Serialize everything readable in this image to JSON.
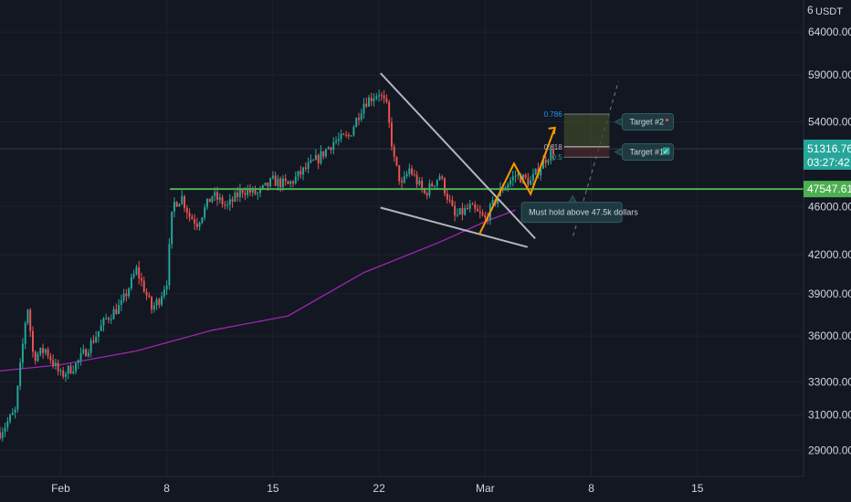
{
  "colors": {
    "background": "#131722",
    "grid": "#1e222d",
    "up": "#26a69a",
    "down": "#ef5350",
    "ma": "#9c27b0",
    "support": "#4caf50",
    "wedge": "#b2b5be",
    "projection": "#ff9800",
    "target_zone": "#3d4a2a",
    "target_zone_low": "#4a2a2a"
  },
  "header": {
    "currency": "USDT",
    "currency_prefix": "6"
  },
  "price_tags": {
    "last_price": "51316.76",
    "countdown": "03:27:42",
    "support_price": "47547.61"
  },
  "annotations": {
    "note": "Must hold above 47.5k dollars",
    "target1": "Target #1",
    "target2": "Target #2",
    "fib_786": "0.786",
    "fib_618": "0.618",
    "fib_5": "0.5",
    "check_glyph": "✓"
  },
  "chart_data": {
    "type": "candlestick",
    "x_tick_labels": [
      "Feb",
      "8",
      "15",
      "22",
      "Mar",
      "8",
      "15"
    ],
    "y_tick_labels": [
      "64000.00",
      "59000.00",
      "54000.00",
      "46000.00",
      "42000.00",
      "39000.00",
      "36000.00",
      "33000.00",
      "31000.00",
      "29000.00"
    ],
    "y_ticks": [
      64000,
      59000,
      54000,
      46000,
      42000,
      39000,
      36000,
      33000,
      31000,
      29000
    ],
    "x_ticks_day": [
      0,
      7,
      14,
      21,
      28,
      35,
      42
    ],
    "ylim": [
      27600,
      68000
    ],
    "xlim_days": [
      -4.0,
      49.0
    ],
    "log_scale": true,
    "grid": true,
    "support_level": 47547.61,
    "last_price": 51316.76,
    "close_path": [
      [
        -4.0,
        30000
      ],
      [
        -3.0,
        31200
      ],
      [
        -2.6,
        34500
      ],
      [
        -2.2,
        38300
      ],
      [
        -1.8,
        34600
      ],
      [
        -1.0,
        35100
      ],
      [
        0.0,
        33400
      ],
      [
        1.0,
        34100
      ],
      [
        2.0,
        35500
      ],
      [
        3.0,
        37200
      ],
      [
        4.0,
        38200
      ],
      [
        5.0,
        40800
      ],
      [
        5.5,
        39400
      ],
      [
        6.0,
        37900
      ],
      [
        6.5,
        38600
      ],
      [
        7.0,
        40000
      ],
      [
        7.4,
        46200
      ],
      [
        8.0,
        46800
      ],
      [
        8.5,
        45200
      ],
      [
        9.0,
        44600
      ],
      [
        10.0,
        47000
      ],
      [
        11.0,
        46000
      ],
      [
        12.0,
        47500
      ],
      [
        13.0,
        47100
      ],
      [
        14.0,
        48300
      ],
      [
        15.0,
        47900
      ],
      [
        16.0,
        49200
      ],
      [
        17.0,
        50400
      ],
      [
        18.0,
        52000
      ],
      [
        19.0,
        52500
      ],
      [
        20.0,
        56000
      ],
      [
        21.0,
        57100
      ],
      [
        21.5,
        55500
      ],
      [
        22.0,
        50200
      ],
      [
        22.5,
        47800
      ],
      [
        23.0,
        49400
      ],
      [
        24.0,
        47100
      ],
      [
        25.0,
        48800
      ],
      [
        26.0,
        45100
      ],
      [
        27.0,
        45900
      ],
      [
        28.0,
        44900
      ],
      [
        29.0,
        47400
      ],
      [
        30.0,
        48800
      ],
      [
        31.0,
        48200
      ],
      [
        32.0,
        50400
      ],
      [
        32.6,
        51316.76
      ]
    ],
    "ma_series": [
      [
        -4.0,
        33700
      ],
      [
        0.0,
        34100
      ],
      [
        5.0,
        35000
      ],
      [
        10.0,
        36400
      ],
      [
        15.0,
        37400
      ],
      [
        20.0,
        40600
      ],
      [
        25.0,
        43000
      ],
      [
        28.0,
        44700
      ],
      [
        30.0,
        45700
      ]
    ],
    "wedge_upper": [
      [
        21.1,
        59200
      ],
      [
        31.3,
        43300
      ]
    ],
    "wedge_lower": [
      [
        21.1,
        45900
      ],
      [
        30.8,
        42600
      ]
    ],
    "projection": [
      [
        27.6,
        43600
      ],
      [
        29.9,
        49900
      ],
      [
        31.0,
        47100
      ],
      [
        32.6,
        53400
      ]
    ],
    "trend_dashed": [
      [
        33.8,
        43500
      ],
      [
        36.8,
        58300
      ]
    ],
    "target_zone_top": 54800,
    "target_zone_mid": 51500,
    "target_zone_bottom": 50500
  }
}
